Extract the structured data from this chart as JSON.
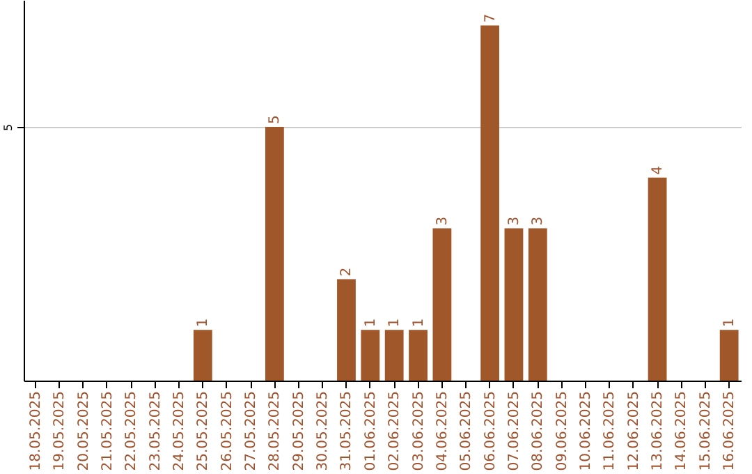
{
  "chart_data": {
    "type": "bar",
    "categories": [
      "18.05.2025",
      "19.05.2025",
      "20.05.2025",
      "21.05.2025",
      "22.05.2025",
      "23.05.2025",
      "24.05.2025",
      "25.05.2025",
      "26.05.2025",
      "27.05.2025",
      "28.05.2025",
      "29.05.2025",
      "30.05.2025",
      "31.05.2025",
      "01.06.2025",
      "02.06.2025",
      "03.06.2025",
      "04.06.2025",
      "05.06.2025",
      "06.06.2025",
      "07.06.2025",
      "08.06.2025",
      "09.06.2025",
      "10.06.2025",
      "11.06.2025",
      "12.06.2025",
      "13.06.2025",
      "14.06.2025",
      "15.06.2025",
      "16.06.2025"
    ],
    "values": [
      0,
      0,
      0,
      0,
      0,
      0,
      0,
      1,
      0,
      0,
      5,
      0,
      0,
      2,
      1,
      1,
      1,
      3,
      0,
      7,
      3,
      3,
      0,
      0,
      0,
      0,
      4,
      0,
      0,
      1
    ],
    "value_labels": [
      null,
      null,
      null,
      null,
      null,
      null,
      null,
      "1",
      null,
      null,
      "5",
      null,
      null,
      "2",
      "1",
      "1",
      "1",
      "3",
      null,
      "7",
      "3",
      "3",
      null,
      null,
      null,
      null,
      "4",
      null,
      null,
      "1"
    ],
    "color": "#a0582a",
    "ylim": [
      0,
      7.5
    ],
    "yticks": [
      5
    ],
    "grid": "y"
  }
}
